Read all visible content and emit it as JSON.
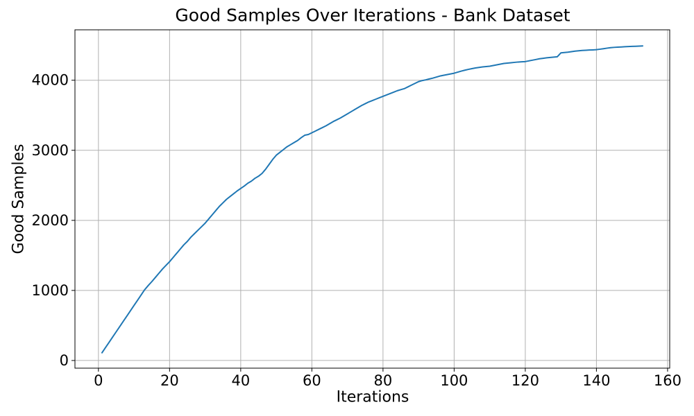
{
  "chart_data": {
    "type": "line",
    "title": "Good Samples Over Iterations - Bank Dataset",
    "xlabel": "Iterations",
    "ylabel": "Good Samples",
    "x_ticks": [
      0,
      20,
      40,
      60,
      80,
      100,
      120,
      140,
      160
    ],
    "y_ticks": [
      0,
      1000,
      2000,
      3000,
      4000
    ],
    "xlim": [
      -6.6,
      160.6
    ],
    "ylim": [
      -109.5,
      4719.5
    ],
    "grid": true,
    "legend": "none",
    "background": "#ffffff",
    "grid_color": "#b0b0b0",
    "spine_color": "#000000",
    "line_color": "#1f77b4",
    "line_width": 2,
    "series": [
      {
        "name": "Good Samples",
        "x": [
          1,
          2,
          3,
          4,
          5,
          6,
          7,
          8,
          9,
          10,
          11,
          12,
          13,
          14,
          15,
          16,
          17,
          18,
          19,
          20,
          21,
          22,
          23,
          24,
          25,
          26,
          27,
          28,
          29,
          30,
          31,
          32,
          33,
          34,
          35,
          36,
          37,
          38,
          39,
          40,
          41,
          42,
          43,
          44,
          45,
          46,
          47,
          48,
          49,
          50,
          51,
          52,
          53,
          54,
          55,
          56,
          57,
          58,
          59,
          60,
          61,
          62,
          63,
          64,
          65,
          66,
          67,
          68,
          69,
          70,
          71,
          72,
          73,
          74,
          75,
          76,
          77,
          78,
          79,
          80,
          81,
          82,
          83,
          84,
          85,
          86,
          87,
          88,
          89,
          90,
          91,
          92,
          93,
          94,
          95,
          96,
          97,
          98,
          99,
          100,
          101,
          102,
          103,
          104,
          105,
          106,
          107,
          108,
          109,
          110,
          111,
          112,
          113,
          114,
          115,
          116,
          117,
          118,
          119,
          120,
          121,
          122,
          123,
          124,
          125,
          126,
          127,
          128,
          129,
          130,
          131,
          132,
          133,
          134,
          135,
          136,
          137,
          138,
          139,
          140,
          141,
          142,
          143,
          144,
          145,
          146,
          147,
          148,
          149,
          150,
          151,
          152,
          153
        ],
        "y": [
          110,
          185,
          260,
          335,
          410,
          485,
          560,
          635,
          710,
          785,
          860,
          935,
          1010,
          1070,
          1125,
          1185,
          1245,
          1305,
          1358,
          1410,
          1470,
          1530,
          1590,
          1650,
          1700,
          1760,
          1810,
          1860,
          1910,
          1960,
          2020,
          2080,
          2140,
          2200,
          2250,
          2300,
          2340,
          2380,
          2420,
          2455,
          2490,
          2530,
          2560,
          2600,
          2630,
          2670,
          2730,
          2800,
          2870,
          2930,
          2970,
          3010,
          3050,
          3080,
          3110,
          3140,
          3180,
          3215,
          3225,
          3250,
          3275,
          3300,
          3325,
          3350,
          3380,
          3410,
          3435,
          3460,
          3490,
          3520,
          3550,
          3580,
          3610,
          3640,
          3665,
          3690,
          3710,
          3730,
          3750,
          3770,
          3790,
          3810,
          3830,
          3850,
          3865,
          3880,
          3905,
          3930,
          3955,
          3980,
          3995,
          4005,
          4018,
          4030,
          4045,
          4060,
          4070,
          4080,
          4090,
          4100,
          4115,
          4130,
          4143,
          4155,
          4165,
          4175,
          4183,
          4190,
          4195,
          4200,
          4210,
          4220,
          4230,
          4240,
          4245,
          4250,
          4255,
          4260,
          4263,
          4266,
          4276,
          4286,
          4296,
          4306,
          4313,
          4320,
          4325,
          4330,
          4335,
          4390,
          4395,
          4400,
          4408,
          4415,
          4420,
          4425,
          4428,
          4431,
          4433,
          4436,
          4443,
          4450,
          4458,
          4465,
          4469,
          4472,
          4475,
          4478,
          4481,
          4483,
          4485,
          4487,
          4490
        ]
      }
    ]
  }
}
